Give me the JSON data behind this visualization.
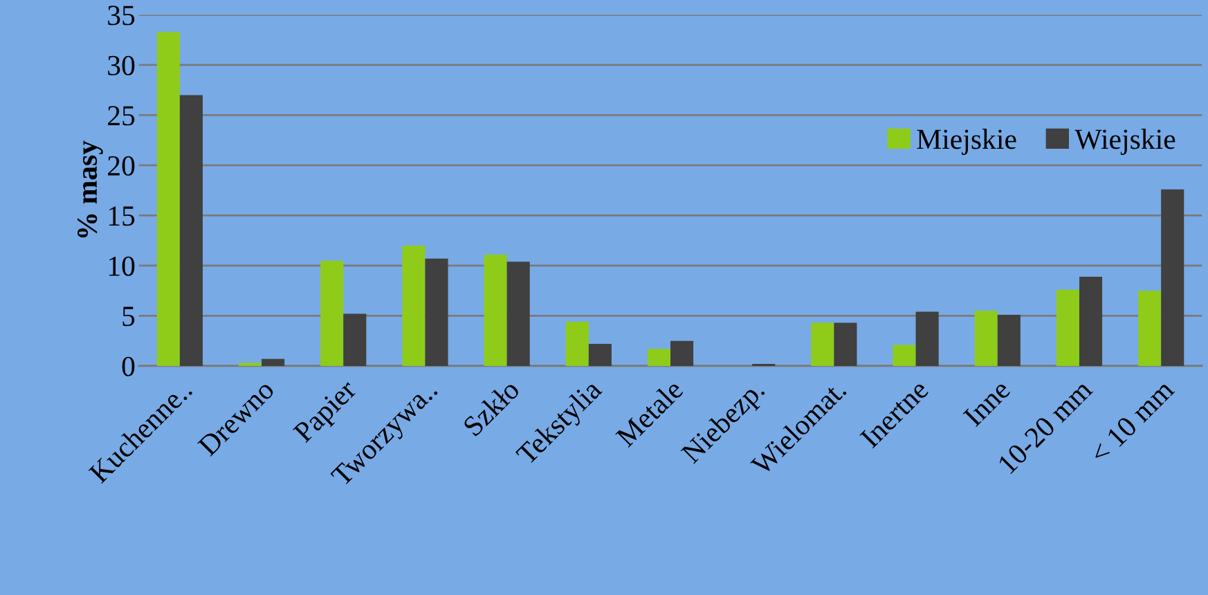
{
  "chart_data": {
    "type": "bar",
    "ylabel": "% masy",
    "categories": [
      "Kuchenne..",
      "Drewno",
      "Papier",
      "Tworzywa..",
      "Szkło",
      "Tekstylia",
      "Metale",
      "Niebezp.",
      "Wielomat.",
      "Inertne",
      "Inne",
      "10-20 mm",
      "< 10 mm"
    ],
    "series": [
      {
        "name": "Miejskie",
        "color": "#8fcc1a",
        "values": [
          33.3,
          0.3,
          10.5,
          12.0,
          11.1,
          4.4,
          1.7,
          0,
          4.3,
          2.1,
          5.5,
          7.6,
          7.5
        ]
      },
      {
        "name": "Wiejskie",
        "color": "#404040",
        "values": [
          27.0,
          0.7,
          5.2,
          10.7,
          10.4,
          2.2,
          2.5,
          0.2,
          4.3,
          5.4,
          5.1,
          8.9,
          17.6
        ]
      }
    ],
    "ylim": [
      0,
      35
    ],
    "yticks": [
      0,
      5,
      10,
      15,
      20,
      25,
      30,
      35
    ],
    "grid": "y",
    "legend": "top right"
  }
}
